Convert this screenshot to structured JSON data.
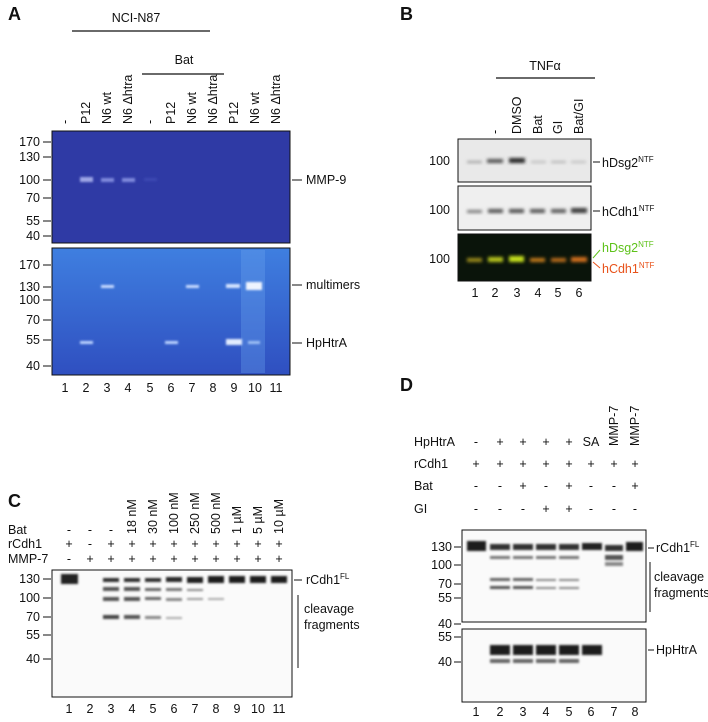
{
  "panelA": {
    "letter": "A",
    "group1_label": "NCI-N87",
    "group2_label": "Bat",
    "lane_headers": [
      "-",
      "P12",
      "N6 wt",
      "N6 Δhtra",
      "-",
      "P12",
      "N6 wt",
      "N6 Δhtra",
      "P12",
      "N6 wt",
      "N6 Δhtra"
    ],
    "gel1_markers": [
      "170",
      "130",
      "100",
      "70",
      "55",
      "40"
    ],
    "gel2_markers": [
      "170",
      "130",
      "100",
      "70",
      "55",
      "40"
    ],
    "gel1_right_labels": [
      "MMP-9"
    ],
    "gel2_right_labels": [
      "multimers",
      "HpHtrA"
    ],
    "lane_numbers": [
      "1",
      "2",
      "3",
      "4",
      "5",
      "6",
      "7",
      "8",
      "9",
      "10",
      "11"
    ]
  },
  "panelB": {
    "letter": "B",
    "group_label": "TNFα",
    "lane_headers": [
      "-",
      "DMSO",
      "Bat",
      "GI",
      "Bat/GI"
    ],
    "marker": "100",
    "blot_labels": [
      {
        "base": "hDsg2",
        "sup": "NTF",
        "color": "#111111"
      },
      {
        "base": "hCdh1",
        "sup": "NTF",
        "color": "#111111"
      },
      {
        "base": "hDsg2",
        "sup": "NTF",
        "color": "#5ec21a"
      },
      {
        "base": "hCdh1",
        "sup": "NTF",
        "color": "#e8521a"
      }
    ],
    "lane_numbers": [
      "1",
      "2",
      "3",
      "4",
      "5",
      "6"
    ]
  },
  "panelC": {
    "letter": "C",
    "row_labels": [
      "Bat",
      "rCdh1",
      "MMP-7"
    ],
    "bat_row": [
      "-",
      "-",
      "-",
      "18 nM",
      "30 nM",
      "100 nM",
      "250 nM",
      "500 nM",
      "1 µM",
      "5 µM",
      "10 µM"
    ],
    "rcdh1_row": [
      "+",
      "-",
      "+",
      "+",
      "+",
      "+",
      "+",
      "+",
      "+",
      "+",
      "+"
    ],
    "mmp7_row": [
      "-",
      "+",
      "+",
      "+",
      "+",
      "+",
      "+",
      "+",
      "+",
      "+",
      "+"
    ],
    "markers": [
      "130",
      "100",
      "70",
      "55",
      "40"
    ],
    "right_label_base": "rCdh1",
    "right_label_sup": "FL",
    "fragments_label": [
      "cleavage",
      "fragments"
    ],
    "lane_numbers": [
      "1",
      "2",
      "3",
      "4",
      "5",
      "6",
      "7",
      "8",
      "9",
      "10",
      "11"
    ]
  },
  "panelD": {
    "letter": "D",
    "row_labels": [
      "HpHtrA",
      "rCdh1",
      "Bat",
      "GI"
    ],
    "hphtra_row": [
      "-",
      "+",
      "+",
      "+",
      "+",
      "SA",
      "MMP-7",
      "MMP-7"
    ],
    "rcdh1_row": [
      "+",
      "+",
      "+",
      "+",
      "+",
      "+",
      "+",
      "+"
    ],
    "bat_row": [
      "-",
      "-",
      "+",
      "-",
      "+",
      "-",
      "-",
      "+"
    ],
    "gi_row": [
      "-",
      "-",
      "-",
      "+",
      "+",
      "-",
      "-",
      "-"
    ],
    "markers_top": [
      "130",
      "100",
      "70",
      "55",
      "40"
    ],
    "markers_bottom": [
      "55",
      "40"
    ],
    "right_label_base": "rCdh1",
    "right_label_sup": "FL",
    "fragments_label": [
      "cleavage",
      "fragments"
    ],
    "bottom_label": "HpHtrA",
    "lane_numbers": [
      "1",
      "2",
      "3",
      "4",
      "5",
      "6",
      "7",
      "8"
    ]
  }
}
